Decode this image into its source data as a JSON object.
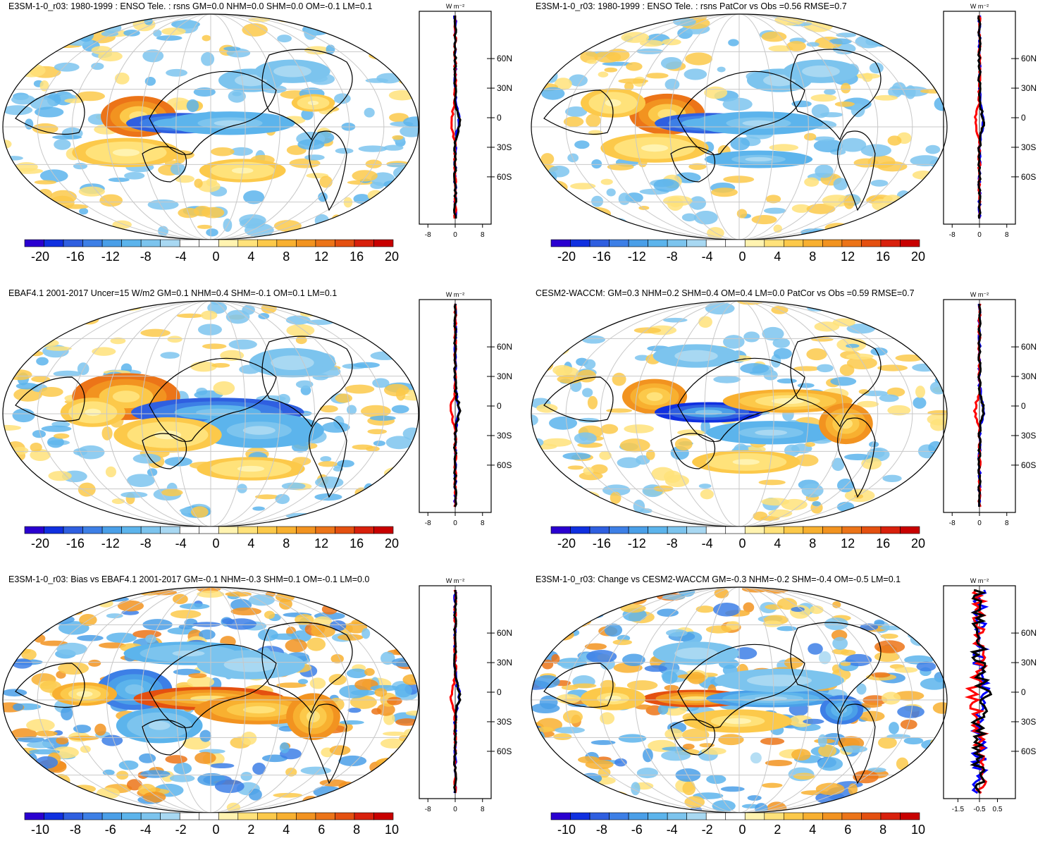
{
  "units_label": "W m⁻²",
  "lat_ticks": [
    "60N",
    "30N",
    "0",
    "30S",
    "60S"
  ],
  "colorbar_ticks_20": [
    "-20",
    "-16",
    "-12",
    "-8",
    "-4",
    "0",
    "4",
    "8",
    "12",
    "16",
    "20"
  ],
  "colorbar_ticks_10": [
    "-10",
    "-8",
    "-6",
    "-4",
    "-2",
    "0",
    "2",
    "4",
    "6",
    "8",
    "10"
  ],
  "zonal_ticks_default": [
    "-8",
    "0",
    "8"
  ],
  "zonal_ticks_last": [
    "-1.5",
    "-0.5",
    "0.5"
  ],
  "colors": {
    "negative": [
      "#2a00d0",
      "#1030e0",
      "#2f5fe0",
      "#3d7fe6",
      "#4a9fe8",
      "#5cb4ec",
      "#7cc4ee",
      "#a8d8f2"
    ],
    "positive": [
      "#fff3b0",
      "#ffe27a",
      "#fcc94a",
      "#f8b030",
      "#f29320",
      "#ec7418",
      "#e45010",
      "#d8200c",
      "#c80000"
    ],
    "zonal_model": "#0000ff",
    "zonal_obs": "#ff0000",
    "zonal_mean": "#000000"
  },
  "panels": [
    {
      "title": "E3SM-1-0_r03: 1980-1999 : ENSO Tele. : rsns GM=0.0 NHM=0.0 SHM=0.0 OM=-0.1 LM=0.1",
      "colorbar": "20"
    },
    {
      "title": "E3SM-1-0_r03: 1980-1999 : ENSO Tele. : rsns PatCor vs Obs =0.56 RMSE=0.7",
      "colorbar": "20"
    },
    {
      "title": "EBAF4.1 2001-2017 Uncer=15 W/m2 GM=0.1 NHM=0.4 SHM=-0.1 OM=0.1 LM=0.1",
      "colorbar": "20"
    },
    {
      "title": "CESM2-WACCM: GM=0.3 NHM=0.2 SHM=0.4 OM=0.4 LM=0.0 PatCor vs Obs =0.59 RMSE=0.7",
      "colorbar": "20"
    },
    {
      "title": "E3SM-1-0_r03: Bias vs EBAF4.1 2001-2017 GM=-0.1 NHM=-0.3 SHM=0.1 OM=-0.1 LM=0.0",
      "colorbar": "10"
    },
    {
      "title": "E3SM-1-0_r03: Change vs CESM2-WACCM GM=-0.3 NHM=-0.2 SHM=-0.4 OM=-0.5 LM=0.1",
      "colorbar": "10"
    }
  ]
}
